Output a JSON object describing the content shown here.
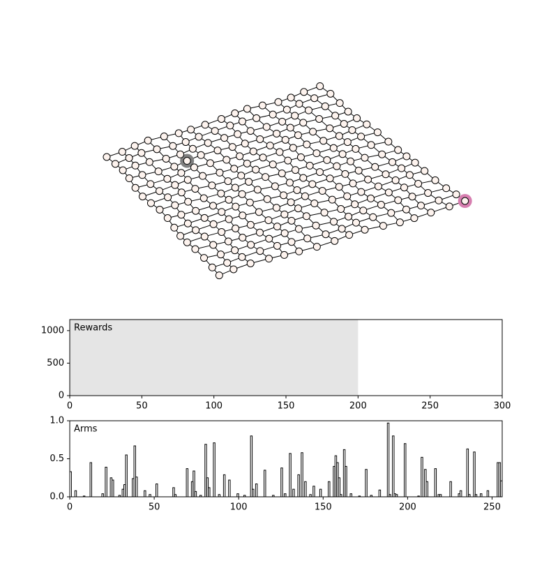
{
  "chart_data": [
    {
      "type": "line",
      "label": "Rewards",
      "xlim": [
        0,
        300
      ],
      "ylim": [
        0,
        1170
      ],
      "xticks": [
        0,
        50,
        100,
        150,
        200,
        250,
        300
      ],
      "yticks": [
        0,
        500,
        1000
      ],
      "span": [
        0,
        200
      ],
      "span_color": "#e5e5e5"
    },
    {
      "type": "step",
      "label": "Arms",
      "xlim": [
        0,
        256
      ],
      "ylim": [
        0,
        1
      ],
      "xticks": [
        0,
        50,
        100,
        150,
        200,
        250
      ],
      "yticks": [
        {
          "value": 0,
          "label": "0.0"
        },
        {
          "value": 0.5,
          "label": "0.5"
        },
        {
          "value": 1,
          "label": "1.0"
        }
      ],
      "color": "#000000",
      "values": [
        0.33,
        0,
        0,
        0.08,
        0,
        0,
        0,
        0,
        0.01,
        0,
        0,
        0,
        0.45,
        0,
        0,
        0,
        0,
        0,
        0,
        0.04,
        0,
        0.39,
        0,
        0,
        0.25,
        0.22,
        0,
        0,
        0,
        0.02,
        0,
        0.1,
        0.16,
        0.55,
        0,
        0,
        0,
        0.24,
        0.67,
        0.26,
        0,
        0,
        0,
        0,
        0.08,
        0,
        0,
        0.03,
        0,
        0,
        0,
        0.17,
        0,
        0,
        0,
        0,
        0,
        0,
        0,
        0,
        0,
        0.12,
        0.03,
        0,
        0,
        0,
        0,
        0,
        0,
        0.37,
        0,
        0,
        0.2,
        0.34,
        0.07,
        0,
        0,
        0.02,
        0,
        0,
        0.69,
        0.25,
        0.12,
        0,
        0,
        0.71,
        0,
        0,
        0.03,
        0,
        0,
        0.29,
        0,
        0,
        0.22,
        0,
        0,
        0,
        0,
        0.04,
        0,
        0,
        0,
        0.02,
        0,
        0,
        0,
        0.8,
        0.1,
        0,
        0.17,
        0,
        0,
        0,
        0,
        0.35,
        0,
        0,
        0,
        0,
        0.02,
        0,
        0,
        0,
        0,
        0.38,
        0,
        0.04,
        0,
        0,
        0.57,
        0,
        0.1,
        0,
        0,
        0.29,
        0,
        0.58,
        0,
        0.2,
        0,
        0,
        0.03,
        0,
        0.14,
        0,
        0,
        0,
        0.1,
        0,
        0,
        0,
        0,
        0.2,
        0,
        0,
        0.4,
        0.54,
        0.45,
        0.25,
        0.03,
        0,
        0.62,
        0.4,
        0,
        0,
        0.04,
        0,
        0,
        0,
        0,
        0.01,
        0,
        0,
        0,
        0.36,
        0,
        0,
        0.02,
        0,
        0,
        0,
        0,
        0.09,
        0,
        0,
        0,
        0,
        0.97,
        0.03,
        0,
        0.8,
        0.04,
        0.03,
        0,
        0,
        0,
        0,
        0.7,
        0,
        0,
        0,
        0,
        0,
        0,
        0,
        0.01,
        0,
        0.52,
        0,
        0.36,
        0.2,
        0,
        0,
        0,
        0,
        0.37,
        0,
        0.03,
        0.03,
        0,
        0,
        0,
        0,
        0,
        0.2,
        0,
        0,
        0,
        0,
        0.04,
        0.08,
        0,
        0,
        0,
        0.63,
        0.03,
        0,
        0,
        0.59,
        0.03,
        0,
        0,
        0.04,
        0,
        0,
        0,
        0.08,
        0,
        0,
        0,
        0,
        0,
        0.45,
        0.45,
        0.21
      ]
    }
  ]
}
